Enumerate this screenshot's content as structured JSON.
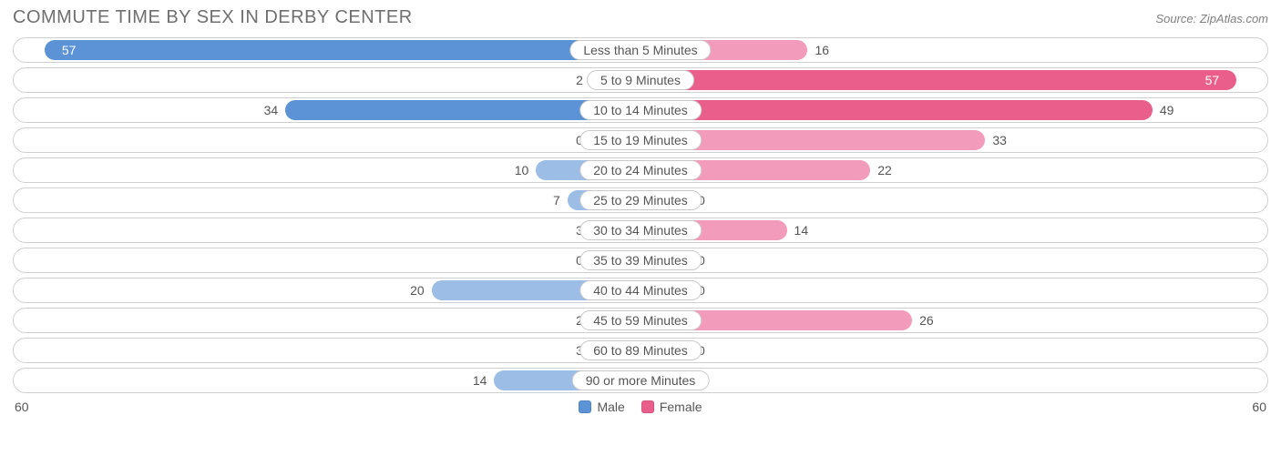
{
  "title": "COMMUTE TIME BY SEX IN DERBY CENTER",
  "source": "Source: ZipAtlas.com",
  "type": "diverging-bar",
  "axis_max": 60,
  "axis_left_label": "60",
  "axis_right_label": "60",
  "min_bar_pct": 8,
  "bar_colors": {
    "male_dark": "#5b93d6",
    "male_light": "#9cbde6",
    "female_dark": "#ea5e8c",
    "female_light": "#f29bba"
  },
  "track_border": "#cfcfcf",
  "background": "#ffffff",
  "text_color": "#555555",
  "title_color": "#6f6f6f",
  "legend": [
    {
      "label": "Male",
      "color": "#5b93d6"
    },
    {
      "label": "Female",
      "color": "#ea5e8c"
    }
  ],
  "categories": [
    {
      "label": "Less than 5 Minutes",
      "male": 57,
      "female": 16,
      "male_dark": true,
      "female_dark": false
    },
    {
      "label": "5 to 9 Minutes",
      "male": 2,
      "female": 57,
      "male_dark": false,
      "female_dark": true
    },
    {
      "label": "10 to 14 Minutes",
      "male": 34,
      "female": 49,
      "male_dark": true,
      "female_dark": true
    },
    {
      "label": "15 to 19 Minutes",
      "male": 0,
      "female": 33,
      "male_dark": false,
      "female_dark": false
    },
    {
      "label": "20 to 24 Minutes",
      "male": 10,
      "female": 22,
      "male_dark": false,
      "female_dark": false
    },
    {
      "label": "25 to 29 Minutes",
      "male": 7,
      "female": 0,
      "male_dark": false,
      "female_dark": false
    },
    {
      "label": "30 to 34 Minutes",
      "male": 3,
      "female": 14,
      "male_dark": false,
      "female_dark": false
    },
    {
      "label": "35 to 39 Minutes",
      "male": 0,
      "female": 0,
      "male_dark": false,
      "female_dark": false
    },
    {
      "label": "40 to 44 Minutes",
      "male": 20,
      "female": 0,
      "male_dark": false,
      "female_dark": false
    },
    {
      "label": "45 to 59 Minutes",
      "male": 2,
      "female": 26,
      "male_dark": false,
      "female_dark": false
    },
    {
      "label": "60 to 89 Minutes",
      "male": 3,
      "female": 0,
      "male_dark": false,
      "female_dark": false
    },
    {
      "label": "90 or more Minutes",
      "male": 14,
      "female": 0,
      "male_dark": false,
      "female_dark": false
    }
  ]
}
